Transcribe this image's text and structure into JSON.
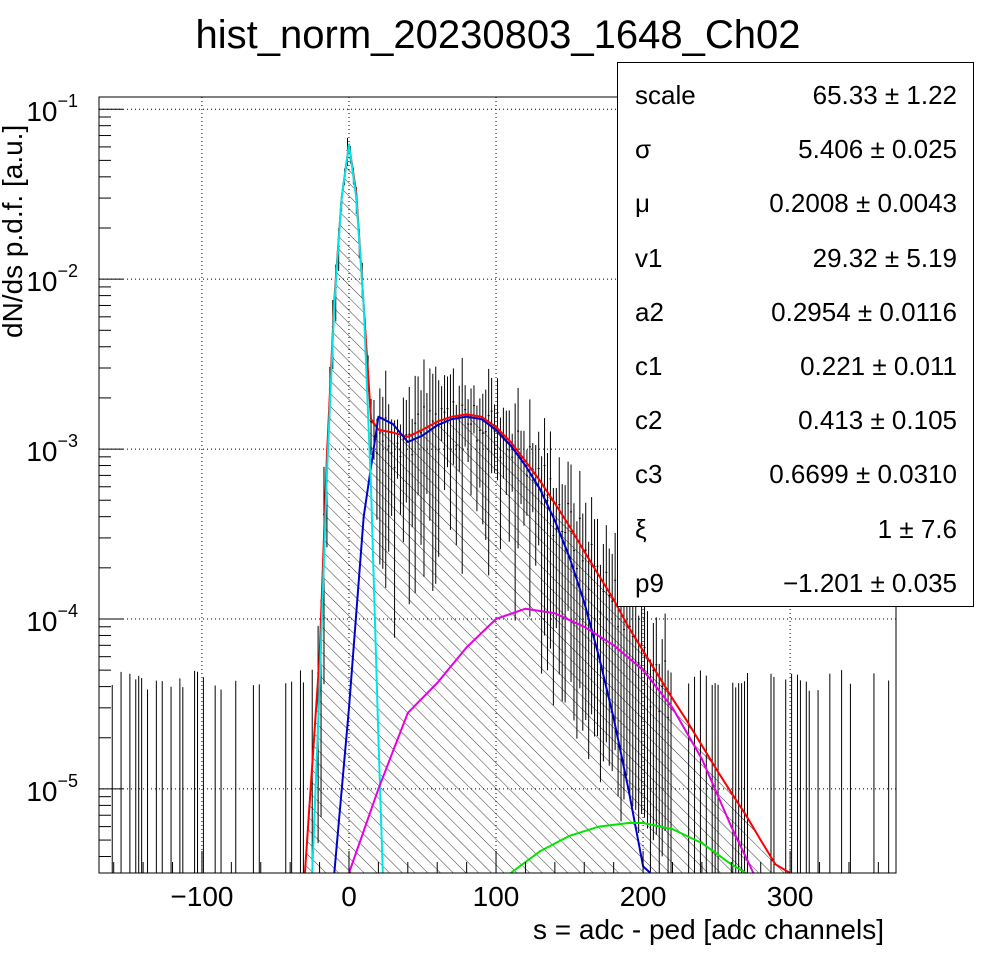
{
  "chart_data": {
    "type": "line",
    "title": "hist_norm_20230803_1648_Ch02",
    "xlabel": "s = adc - ped [adc channels]",
    "ylabel": "dN/ds p.d.f. [a.u.]",
    "xlim": [
      -170,
      372
    ],
    "ylim": [
      3.2e-06,
      0.118
    ],
    "yscale": "log",
    "grid": true,
    "x_ticks": [
      {
        "value": -100,
        "label": "−100"
      },
      {
        "value": 0,
        "label": "0"
      },
      {
        "value": 100,
        "label": "100"
      },
      {
        "value": 200,
        "label": "200"
      },
      {
        "value": 300,
        "label": "300"
      }
    ],
    "y_ticks": [
      {
        "value": 0.1,
        "base": "10",
        "exp": "−1"
      },
      {
        "value": 0.01,
        "base": "10",
        "exp": "−2"
      },
      {
        "value": 0.001,
        "base": "10",
        "exp": "−3"
      },
      {
        "value": 0.0001,
        "base": "10",
        "exp": "−4"
      },
      {
        "value": 1e-05,
        "base": "10",
        "exp": "−5"
      }
    ],
    "series": [
      {
        "color": "#ff0000",
        "points": [
          [
            -30,
            3e-06
          ],
          [
            -20,
            6e-05
          ],
          [
            -15,
            0.0009
          ],
          [
            -10,
            0.0075
          ],
          [
            -5,
            0.03
          ],
          [
            0,
            0.062
          ],
          [
            5,
            0.032
          ],
          [
            10,
            0.007
          ],
          [
            15,
            0.0015
          ],
          [
            20,
            0.0013
          ],
          [
            30,
            0.00125
          ],
          [
            40,
            0.00118
          ],
          [
            50,
            0.0013
          ],
          [
            60,
            0.00145
          ],
          [
            70,
            0.00155
          ],
          [
            80,
            0.0016
          ],
          [
            90,
            0.00155
          ],
          [
            100,
            0.00135
          ],
          [
            110,
            0.0011
          ],
          [
            120,
            0.00085
          ],
          [
            130,
            0.00065
          ],
          [
            140,
            0.00048
          ],
          [
            150,
            0.00035
          ],
          [
            160,
            0.00025
          ],
          [
            170,
            0.00018
          ],
          [
            180,
            0.00013
          ],
          [
            190,
            9e-05
          ],
          [
            200,
            6.5e-05
          ],
          [
            210,
            4.7e-05
          ],
          [
            220,
            3.4e-05
          ],
          [
            230,
            2.5e-05
          ],
          [
            240,
            1.8e-05
          ],
          [
            250,
            1.3e-05
          ],
          [
            260,
            9.5e-06
          ],
          [
            270,
            7e-06
          ],
          [
            280,
            5e-06
          ],
          [
            290,
            3.6e-06
          ],
          [
            300,
            3e-06
          ]
        ]
      },
      {
        "color": "#0000cc",
        "points": [
          [
            -10,
            2.8e-06
          ],
          [
            0,
            3e-05
          ],
          [
            10,
            0.0004
          ],
          [
            20,
            0.00155
          ],
          [
            30,
            0.0014
          ],
          [
            40,
            0.0011
          ],
          [
            50,
            0.0012
          ],
          [
            60,
            0.00138
          ],
          [
            70,
            0.0015
          ],
          [
            80,
            0.00155
          ],
          [
            90,
            0.0015
          ],
          [
            100,
            0.0013
          ],
          [
            110,
            0.00105
          ],
          [
            120,
            0.0008
          ],
          [
            130,
            0.00058
          ],
          [
            140,
            0.00038
          ],
          [
            150,
            0.00023
          ],
          [
            160,
            0.000125
          ],
          [
            170,
            6e-05
          ],
          [
            180,
            2.6e-05
          ],
          [
            190,
            1e-05
          ],
          [
            200,
            3.5e-06
          ],
          [
            205,
            2e-06
          ]
        ]
      },
      {
        "color": "#00e5e5",
        "points": [
          [
            -25,
            3e-06
          ],
          [
            -20,
            4e-05
          ],
          [
            -15,
            0.0007
          ],
          [
            -10,
            0.007
          ],
          [
            -5,
            0.03
          ],
          [
            0,
            0.062
          ],
          [
            5,
            0.03
          ],
          [
            10,
            0.007
          ],
          [
            15,
            0.0006
          ],
          [
            20,
            2e-05
          ],
          [
            23,
            3e-06
          ]
        ]
      },
      {
        "color": "#e600e6",
        "points": [
          [
            0,
            3e-06
          ],
          [
            20,
            1e-05
          ],
          [
            40,
            2.8e-05
          ],
          [
            60,
            4.2e-05
          ],
          [
            80,
            6.8e-05
          ],
          [
            100,
            0.0001
          ],
          [
            120,
            0.000115
          ],
          [
            140,
            0.000108
          ],
          [
            160,
            9e-05
          ],
          [
            180,
            7e-05
          ],
          [
            200,
            5e-05
          ],
          [
            220,
            3e-05
          ],
          [
            240,
            1.5e-05
          ],
          [
            260,
            6e-06
          ],
          [
            275,
            3e-06
          ]
        ]
      },
      {
        "color": "#00e600",
        "points": [
          [
            110,
            3e-06
          ],
          [
            130,
            4.3e-06
          ],
          [
            150,
            5.3e-06
          ],
          [
            170,
            6e-06
          ],
          [
            190,
            6.3e-06
          ],
          [
            200,
            6.3e-06
          ],
          [
            220,
            5.8e-06
          ],
          [
            240,
            4.8e-06
          ],
          [
            260,
            3.6e-06
          ],
          [
            270,
            3e-06
          ]
        ]
      }
    ]
  },
  "stats": [
    {
      "name": "scale",
      "value": "65.33 ± 1.22"
    },
    {
      "name": "σ",
      "value": "5.406 ± 0.025"
    },
    {
      "name": "μ",
      "value": "0.2008 ± 0.0043"
    },
    {
      "name": "v1",
      "value": "29.32 ± 5.19"
    },
    {
      "name": "a2",
      "value": "0.2954 ± 0.0116"
    },
    {
      "name": "c1",
      "value": "0.221 ± 0.011"
    },
    {
      "name": "c2",
      "value": "0.413 ± 0.105"
    },
    {
      "name": "c3",
      "value": "0.6699 ± 0.0310"
    },
    {
      "name": "ξ",
      "value": "1 ± 7.6"
    },
    {
      "name": "p9",
      "value": "−1.201 ± 0.035"
    }
  ]
}
